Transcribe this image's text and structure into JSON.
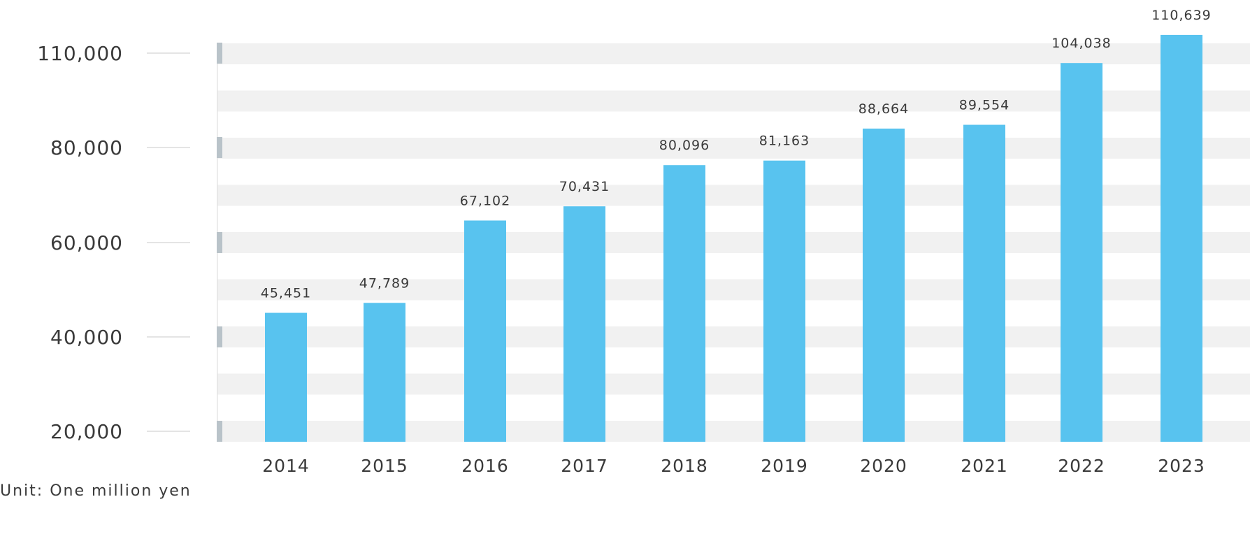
{
  "chart_data": {
    "type": "bar",
    "categories": [
      "2014",
      "2015",
      "2016",
      "2017",
      "2018",
      "2019",
      "2020",
      "2021",
      "2022",
      "2023"
    ],
    "values": [
      45451,
      47789,
      67102,
      70431,
      80096,
      81163,
      88664,
      89554,
      104038,
      110639
    ],
    "value_labels": [
      "45,451",
      "47,789",
      "67,102",
      "70,431",
      "80,096",
      "81,163",
      "88,664",
      "89,554",
      "104,038",
      "110,639"
    ],
    "y_ticks": [
      20000,
      40000,
      60000,
      80000,
      110000
    ],
    "y_tick_labels": [
      "20,000",
      "40,000",
      "60,000",
      "80,000",
      "110,000"
    ],
    "unit": "Unit: One million yen",
    "bar_color": "#58c3ef",
    "band_color": "#f1f1f1",
    "tick_marker_color": "#b9c3c9"
  }
}
